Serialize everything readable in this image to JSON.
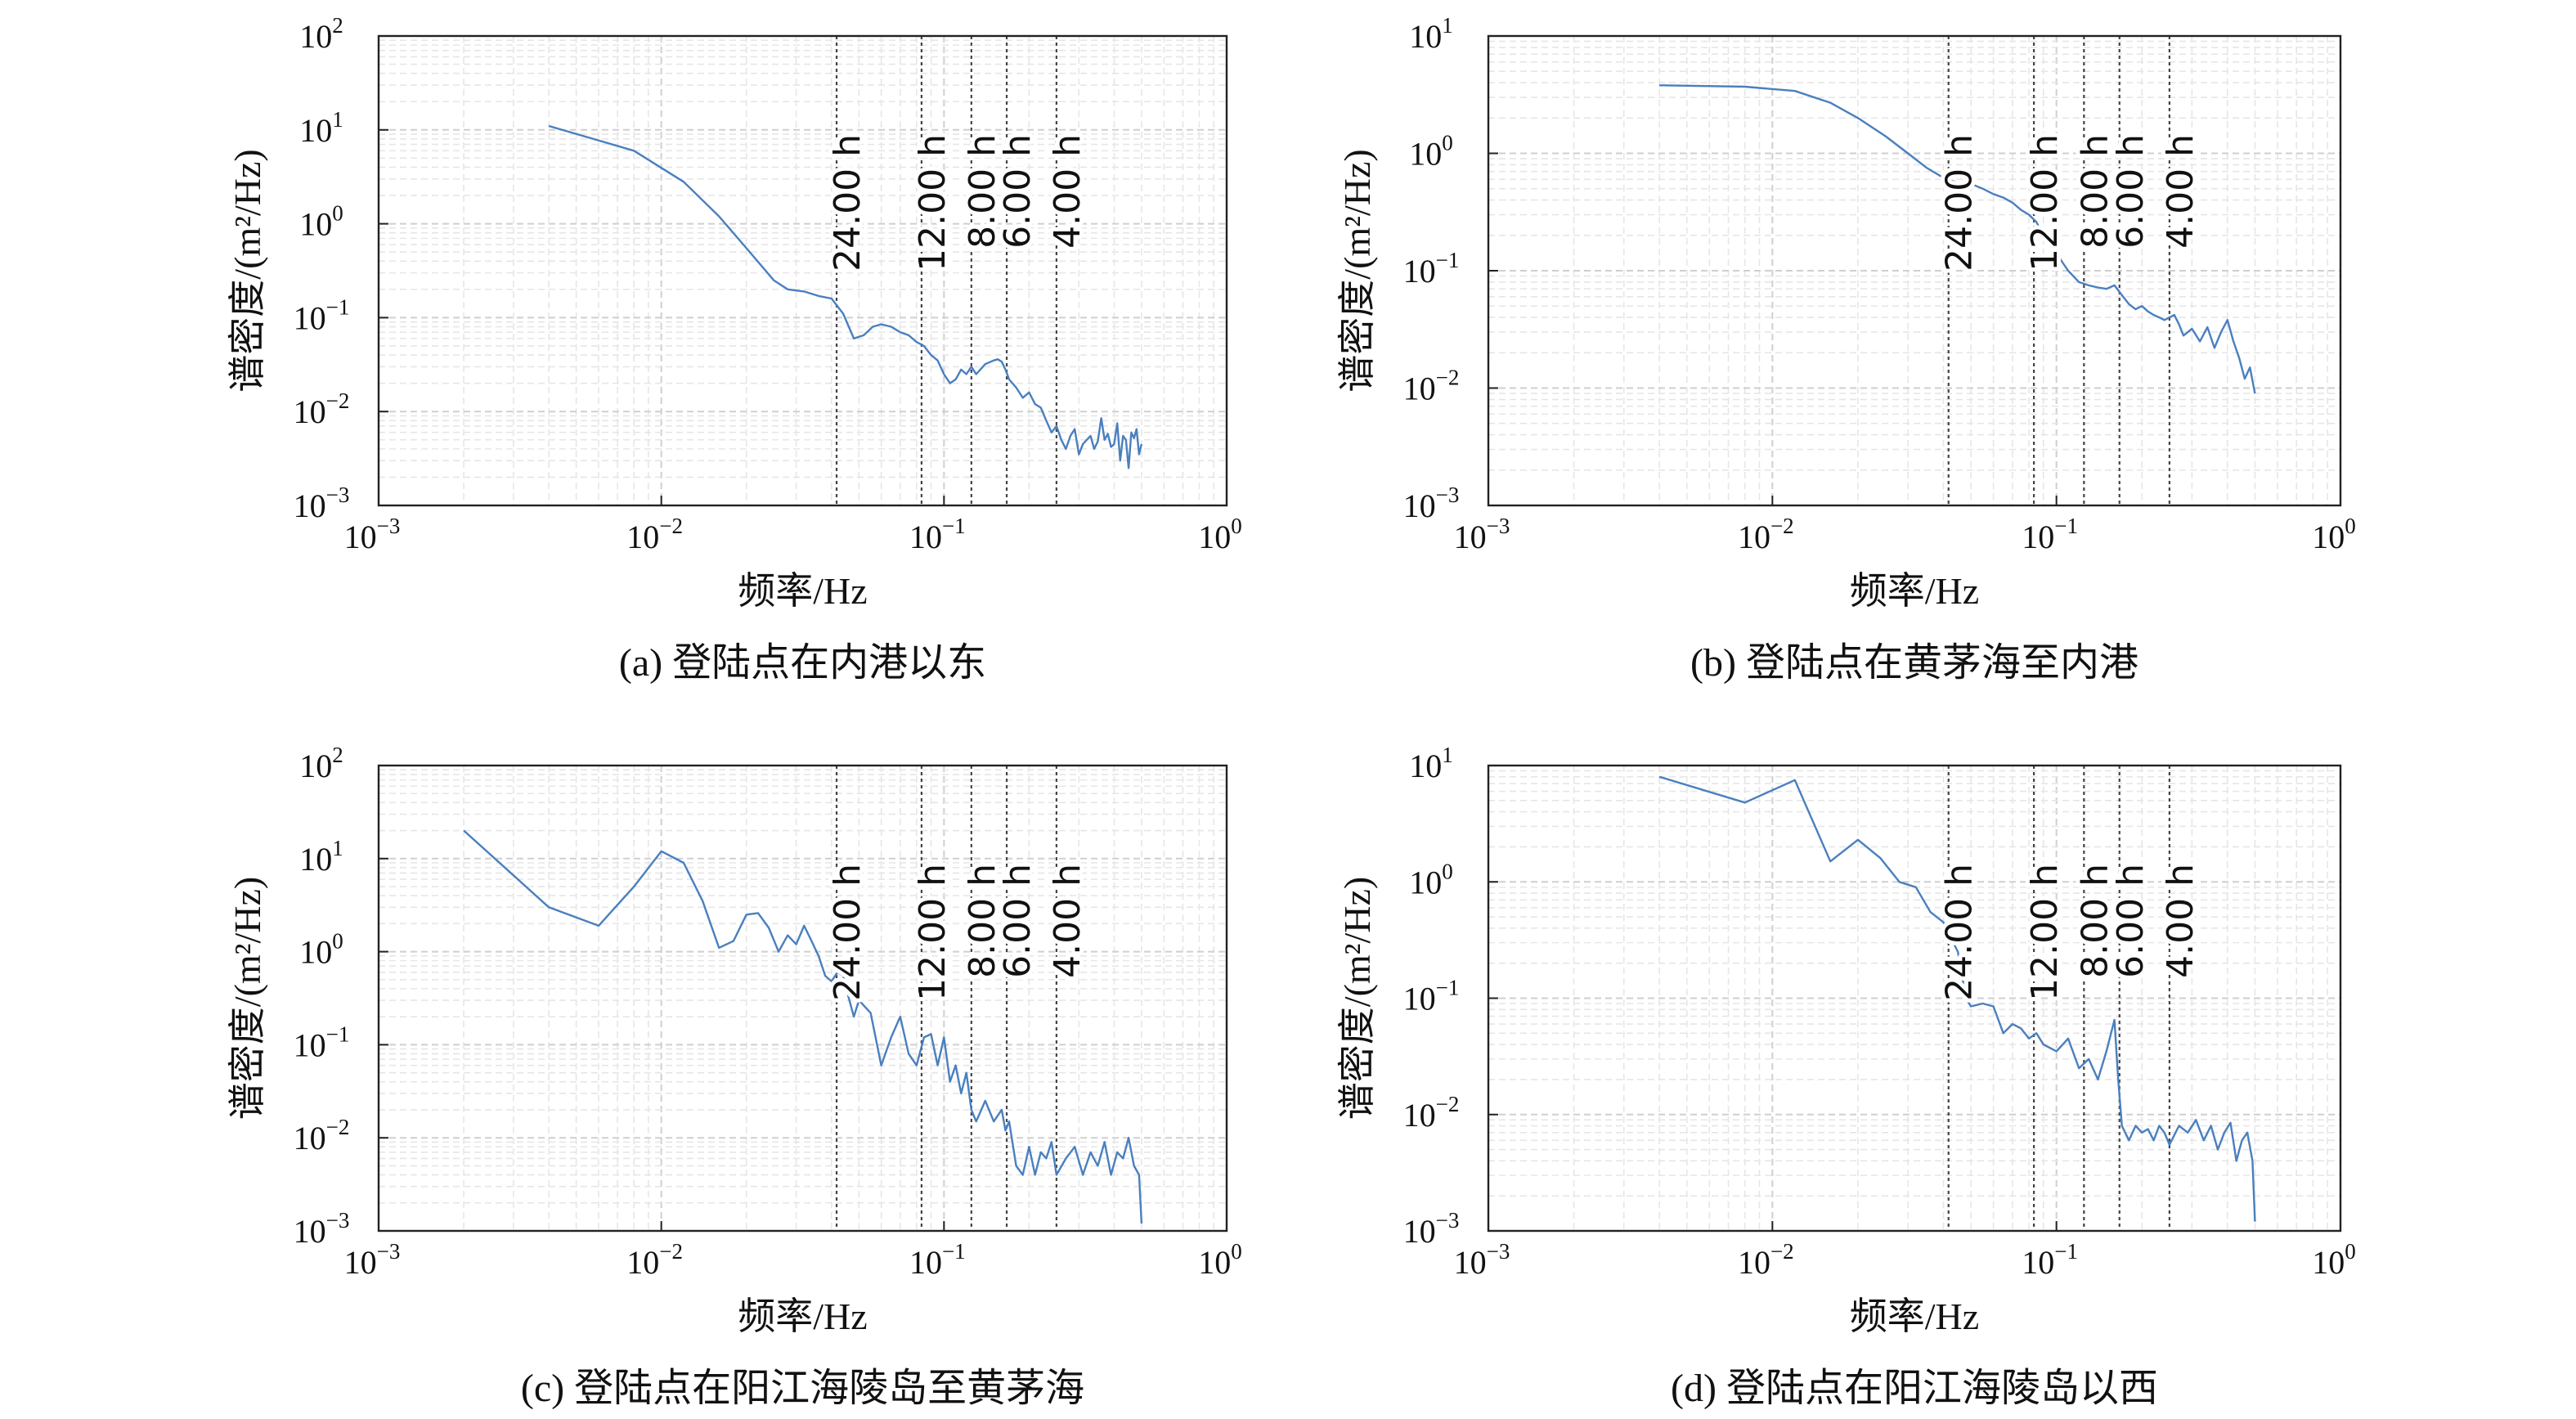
{
  "chart_data": [
    {
      "type": "line",
      "caption": "(a) 登陆点在内港以东",
      "xlabel": "频率/Hz",
      "ylabel": "谱密度/(m²/Hz)",
      "xscale": "log",
      "yscale": "log",
      "xlim": [
        0.001,
        1
      ],
      "ylim": [
        0.001,
        100
      ],
      "grid": true,
      "x_ticks": [
        {
          "base": "10",
          "exp": "−3"
        },
        {
          "base": "10",
          "exp": "−2"
        },
        {
          "base": "10",
          "exp": "−1"
        },
        {
          "base": "10",
          "exp": "0"
        }
      ],
      "y_ticks": [
        {
          "base": "10",
          "exp": "−3"
        },
        {
          "base": "10",
          "exp": "−2"
        },
        {
          "base": "10",
          "exp": "−1"
        },
        {
          "base": "10",
          "exp": "0"
        },
        {
          "base": "10",
          "exp": "1"
        },
        {
          "base": "10",
          "exp": "2"
        }
      ],
      "series_color": "#4a7fbf",
      "period_lines": [
        {
          "label": "24.00 h",
          "freq": 0.0417
        },
        {
          "label": "12.00 h",
          "freq": 0.0833
        },
        {
          "label": "8.00 h",
          "freq": 0.125
        },
        {
          "label": "6.00 h",
          "freq": 0.1667
        },
        {
          "label": "4.00 h",
          "freq": 0.25
        }
      ],
      "series": [
        {
          "x": [
            0.004,
            0.008,
            0.012,
            0.016,
            0.02,
            0.025,
            0.028,
            0.032,
            0.036,
            0.04,
            0.044,
            0.048,
            0.052,
            0.056,
            0.06,
            0.065,
            0.07,
            0.075,
            0.08,
            0.085,
            0.09,
            0.095,
            0.1,
            0.105,
            0.11,
            0.115,
            0.12,
            0.125,
            0.13,
            0.14,
            0.15,
            0.155,
            0.16,
            0.165,
            0.17,
            0.18,
            0.19,
            0.2,
            0.21,
            0.22,
            0.23,
            0.24,
            0.25,
            0.26,
            0.27,
            0.28,
            0.29,
            0.3,
            0.31,
            0.32,
            0.33,
            0.34,
            0.35,
            0.36,
            0.37,
            0.38,
            0.39,
            0.4,
            0.41,
            0.42,
            0.43,
            0.44,
            0.45,
            0.46,
            0.47,
            0.48,
            0.49,
            0.5
          ],
          "y": [
            11,
            6,
            2.8,
            1.2,
            0.55,
            0.25,
            0.2,
            0.19,
            0.17,
            0.16,
            0.11,
            0.06,
            0.065,
            0.08,
            0.085,
            0.08,
            0.07,
            0.065,
            0.055,
            0.05,
            0.04,
            0.035,
            0.025,
            0.02,
            0.022,
            0.028,
            0.025,
            0.03,
            0.025,
            0.032,
            0.035,
            0.036,
            0.034,
            0.028,
            0.022,
            0.018,
            0.014,
            0.016,
            0.012,
            0.011,
            0.008,
            0.006,
            0.007,
            0.005,
            0.004,
            0.0055,
            0.0065,
            0.0035,
            0.0045,
            0.005,
            0.0055,
            0.004,
            0.0048,
            0.0085,
            0.005,
            0.0058,
            0.0042,
            0.0045,
            0.0075,
            0.003,
            0.0055,
            0.005,
            0.0025,
            0.006,
            0.0052,
            0.0065,
            0.0035,
            0.0045
          ]
        }
      ]
    },
    {
      "type": "line",
      "caption": "(b) 登陆点在黄茅海至内港",
      "xlabel": "频率/Hz",
      "ylabel": "谱密度/(m²/Hz)",
      "xscale": "log",
      "yscale": "log",
      "xlim": [
        0.001,
        1
      ],
      "ylim": [
        0.001,
        10
      ],
      "grid": true,
      "x_ticks": [
        {
          "base": "10",
          "exp": "−3"
        },
        {
          "base": "10",
          "exp": "−2"
        },
        {
          "base": "10",
          "exp": "−1"
        },
        {
          "base": "10",
          "exp": "0"
        }
      ],
      "y_ticks": [
        {
          "base": "10",
          "exp": "−3"
        },
        {
          "base": "10",
          "exp": "−2"
        },
        {
          "base": "10",
          "exp": "−1"
        },
        {
          "base": "10",
          "exp": "0"
        },
        {
          "base": "10",
          "exp": "1"
        }
      ],
      "series_color": "#4a7fbf",
      "period_lines": [
        {
          "label": "24.00 h",
          "freq": 0.0417
        },
        {
          "label": "12.00 h",
          "freq": 0.0833
        },
        {
          "label": "8.00 h",
          "freq": 0.125
        },
        {
          "label": "6.00 h",
          "freq": 0.1667
        },
        {
          "label": "4.00 h",
          "freq": 0.25
        }
      ],
      "series": [
        {
          "x": [
            0.004,
            0.008,
            0.012,
            0.016,
            0.02,
            0.025,
            0.03,
            0.035,
            0.04,
            0.045,
            0.05,
            0.055,
            0.06,
            0.065,
            0.07,
            0.075,
            0.08,
            0.085,
            0.09,
            0.1,
            0.11,
            0.12,
            0.13,
            0.14,
            0.15,
            0.16,
            0.17,
            0.18,
            0.19,
            0.2,
            0.21,
            0.22,
            0.23,
            0.24,
            0.25,
            0.26,
            0.27,
            0.28,
            0.3,
            0.32,
            0.34,
            0.36,
            0.38,
            0.4,
            0.42,
            0.44,
            0.46,
            0.48,
            0.5
          ],
          "y": [
            3.8,
            3.7,
            3.4,
            2.7,
            2.0,
            1.4,
            1.0,
            0.75,
            0.62,
            0.56,
            0.55,
            0.5,
            0.45,
            0.42,
            0.38,
            0.33,
            0.3,
            0.26,
            0.2,
            0.14,
            0.1,
            0.08,
            0.075,
            0.072,
            0.07,
            0.075,
            0.062,
            0.052,
            0.047,
            0.05,
            0.045,
            0.042,
            0.04,
            0.038,
            0.04,
            0.042,
            0.035,
            0.028,
            0.032,
            0.025,
            0.033,
            0.022,
            0.03,
            0.038,
            0.025,
            0.018,
            0.012,
            0.015,
            0.009
          ]
        }
      ]
    },
    {
      "type": "line",
      "caption": "(c) 登陆点在阳江海陵岛至黄茅海",
      "xlabel": "频率/Hz",
      "ylabel": "谱密度/(m²/Hz)",
      "xscale": "log",
      "yscale": "log",
      "xlim": [
        0.001,
        1
      ],
      "ylim": [
        0.001,
        100
      ],
      "grid": true,
      "x_ticks": [
        {
          "base": "10",
          "exp": "−3"
        },
        {
          "base": "10",
          "exp": "−2"
        },
        {
          "base": "10",
          "exp": "−1"
        },
        {
          "base": "10",
          "exp": "0"
        }
      ],
      "y_ticks": [
        {
          "base": "10",
          "exp": "−3"
        },
        {
          "base": "10",
          "exp": "−2"
        },
        {
          "base": "10",
          "exp": "−1"
        },
        {
          "base": "10",
          "exp": "0"
        },
        {
          "base": "10",
          "exp": "1"
        },
        {
          "base": "10",
          "exp": "2"
        }
      ],
      "series_color": "#4a7fbf",
      "period_lines": [
        {
          "label": "24.00 h",
          "freq": 0.0417
        },
        {
          "label": "12.00 h",
          "freq": 0.0833
        },
        {
          "label": "8.00 h",
          "freq": 0.125
        },
        {
          "label": "6.00 h",
          "freq": 0.1667
        },
        {
          "label": "4.00 h",
          "freq": 0.25
        }
      ],
      "series": [
        {
          "x": [
            0.002,
            0.004,
            0.006,
            0.008,
            0.01,
            0.012,
            0.014,
            0.016,
            0.018,
            0.02,
            0.022,
            0.024,
            0.026,
            0.028,
            0.03,
            0.032,
            0.034,
            0.036,
            0.038,
            0.04,
            0.042,
            0.044,
            0.046,
            0.048,
            0.05,
            0.055,
            0.06,
            0.065,
            0.07,
            0.075,
            0.08,
            0.085,
            0.09,
            0.095,
            0.1,
            0.105,
            0.11,
            0.115,
            0.12,
            0.125,
            0.13,
            0.14,
            0.15,
            0.16,
            0.165,
            0.17,
            0.18,
            0.19,
            0.2,
            0.21,
            0.22,
            0.23,
            0.24,
            0.25,
            0.27,
            0.29,
            0.31,
            0.33,
            0.35,
            0.37,
            0.39,
            0.41,
            0.43,
            0.45,
            0.47,
            0.49,
            0.5
          ],
          "y": [
            20,
            3,
            1.9,
            5,
            12,
            9,
            3.5,
            1.1,
            1.3,
            2.5,
            2.6,
            1.8,
            1.0,
            1.5,
            1.2,
            1.9,
            1.3,
            0.9,
            0.55,
            0.48,
            0.6,
            0.55,
            0.32,
            0.2,
            0.3,
            0.22,
            0.06,
            0.12,
            0.2,
            0.08,
            0.06,
            0.12,
            0.13,
            0.06,
            0.12,
            0.04,
            0.06,
            0.03,
            0.05,
            0.02,
            0.015,
            0.025,
            0.015,
            0.02,
            0.012,
            0.015,
            0.005,
            0.004,
            0.008,
            0.004,
            0.007,
            0.006,
            0.009,
            0.004,
            0.006,
            0.008,
            0.004,
            0.007,
            0.005,
            0.009,
            0.004,
            0.007,
            0.006,
            0.01,
            0.005,
            0.004,
            0.0012
          ]
        }
      ]
    },
    {
      "type": "line",
      "caption": "(d) 登陆点在阳江海陵岛以西",
      "xlabel": "频率/Hz",
      "ylabel": "谱密度/(m²/Hz)",
      "xscale": "log",
      "yscale": "log",
      "xlim": [
        0.001,
        1
      ],
      "ylim": [
        0.001,
        10
      ],
      "grid": true,
      "x_ticks": [
        {
          "base": "10",
          "exp": "−3"
        },
        {
          "base": "10",
          "exp": "−2"
        },
        {
          "base": "10",
          "exp": "−1"
        },
        {
          "base": "10",
          "exp": "0"
        }
      ],
      "y_ticks": [
        {
          "base": "10",
          "exp": "−3"
        },
        {
          "base": "10",
          "exp": "−2"
        },
        {
          "base": "10",
          "exp": "−1"
        },
        {
          "base": "10",
          "exp": "0"
        },
        {
          "base": "10",
          "exp": "1"
        }
      ],
      "series_color": "#4a7fbf",
      "period_lines": [
        {
          "label": "24.00 h",
          "freq": 0.0417
        },
        {
          "label": "12.00 h",
          "freq": 0.0833
        },
        {
          "label": "8.00 h",
          "freq": 0.125
        },
        {
          "label": "6.00 h",
          "freq": 0.1667
        },
        {
          "label": "4.00 h",
          "freq": 0.25
        }
      ],
      "series": [
        {
          "x": [
            0.004,
            0.008,
            0.012,
            0.016,
            0.02,
            0.024,
            0.028,
            0.032,
            0.036,
            0.04,
            0.042,
            0.045,
            0.048,
            0.05,
            0.055,
            0.06,
            0.065,
            0.07,
            0.075,
            0.08,
            0.085,
            0.09,
            0.1,
            0.11,
            0.12,
            0.13,
            0.14,
            0.15,
            0.16,
            0.165,
            0.17,
            0.18,
            0.19,
            0.2,
            0.21,
            0.22,
            0.23,
            0.24,
            0.25,
            0.27,
            0.29,
            0.31,
            0.33,
            0.35,
            0.37,
            0.39,
            0.41,
            0.43,
            0.45,
            0.47,
            0.49,
            0.5
          ],
          "y": [
            8,
            4.8,
            7.5,
            1.5,
            2.3,
            1.6,
            1.0,
            0.9,
            0.55,
            0.45,
            0.35,
            0.25,
            0.1,
            0.085,
            0.09,
            0.085,
            0.05,
            0.06,
            0.055,
            0.045,
            0.05,
            0.04,
            0.035,
            0.045,
            0.025,
            0.03,
            0.02,
            0.035,
            0.065,
            0.02,
            0.008,
            0.006,
            0.008,
            0.007,
            0.0075,
            0.006,
            0.008,
            0.007,
            0.0055,
            0.008,
            0.007,
            0.009,
            0.006,
            0.008,
            0.005,
            0.007,
            0.0085,
            0.004,
            0.006,
            0.007,
            0.004,
            0.0012
          ]
        }
      ]
    }
  ]
}
